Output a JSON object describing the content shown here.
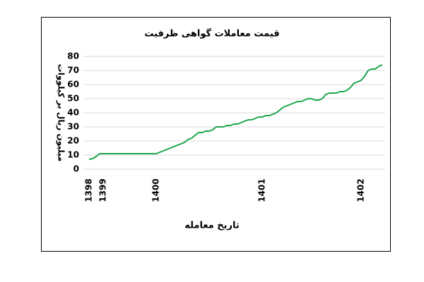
{
  "chart_data": {
    "type": "line",
    "title": "قیمت معاملات گواهی ظرفیت",
    "y_label": "میلیون ریال بر کیلووات",
    "x_label": "تاریخ معامله",
    "categories": [
      "1398",
      null,
      null,
      null,
      "1399",
      null,
      null,
      null,
      null,
      null,
      null,
      null,
      null,
      null,
      null,
      null,
      null,
      null,
      null,
      "1400",
      null,
      null,
      null,
      null,
      null,
      null,
      null,
      null,
      null,
      null,
      null,
      null,
      null,
      null,
      null,
      null,
      null,
      null,
      null,
      null,
      null,
      null,
      null,
      null,
      null,
      null,
      null,
      null,
      null,
      "1401",
      null,
      null,
      null,
      null,
      null,
      null,
      null,
      null,
      null,
      null,
      null,
      null,
      null,
      null,
      null,
      null,
      null,
      null,
      null,
      null,
      null,
      null,
      null,
      null,
      null,
      null,
      null,
      "1402",
      null,
      null,
      null,
      null,
      null,
      null
    ],
    "series": [
      {
        "color": "#1aa64b",
        "values": [
          7,
          7.5,
          9,
          11,
          11,
          11,
          11,
          11,
          11,
          11,
          11,
          11,
          11,
          11,
          11,
          11,
          11,
          11,
          11,
          11,
          12,
          13,
          14,
          15,
          16,
          17,
          18,
          19,
          21,
          22,
          24,
          26,
          26,
          27,
          27,
          28,
          30,
          30,
          30,
          31,
          31,
          32,
          32,
          33,
          34,
          35,
          35,
          36,
          37,
          37,
          38,
          38,
          39,
          40,
          42,
          44,
          45,
          46,
          47,
          48,
          48,
          49,
          50,
          50,
          49,
          49,
          50,
          53,
          54,
          54,
          54,
          55,
          55,
          56,
          58,
          61,
          62,
          63,
          66,
          70,
          71,
          71,
          73,
          74
        ]
      }
    ],
    "ylim": [
      0,
      80
    ],
    "yticks": [
      0,
      10,
      20,
      30,
      40,
      50,
      60,
      70,
      80
    ],
    "grid": true
  }
}
